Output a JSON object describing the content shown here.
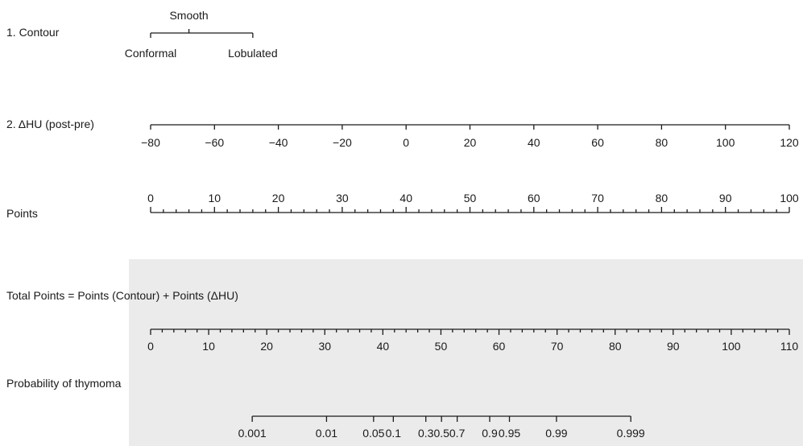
{
  "chart_data": {
    "type": "nomogram",
    "scales": [
      {
        "label": "1. Contour",
        "kind": "categorical",
        "ticks": [
          {
            "value": 0,
            "text": "Conformal",
            "side": "below"
          },
          {
            "value": 6,
            "text": "Smooth",
            "side": "above"
          },
          {
            "value": 16,
            "text": "Lobulated",
            "side": "below"
          }
        ],
        "axis_range_points": [
          0,
          16
        ]
      },
      {
        "label": "2. ΔHU (post-pre)",
        "kind": "linear",
        "domain": [
          -80,
          120
        ],
        "tick_values": [
          -80,
          -60,
          -40,
          -20,
          0,
          20,
          40,
          60,
          80,
          100,
          120
        ],
        "tick_labels": [
          "−80",
          "−60",
          "−40",
          "−20",
          "0",
          "20",
          "40",
          "60",
          "80",
          "100",
          "120"
        ],
        "label_side": "below"
      },
      {
        "label": "Points",
        "kind": "linear",
        "domain": [
          0,
          100
        ],
        "tick_values": [
          0,
          10,
          20,
          30,
          40,
          50,
          60,
          70,
          80,
          90,
          100
        ],
        "tick_labels": [
          "0",
          "10",
          "20",
          "30",
          "40",
          "50",
          "60",
          "70",
          "80",
          "90",
          "100"
        ],
        "minor_step": 2,
        "label_side": "above"
      },
      {
        "label": "Total Points = Points (Contour) + Points (ΔHU)",
        "kind": "linear",
        "domain": [
          0,
          110
        ],
        "tick_values": [
          0,
          10,
          20,
          30,
          40,
          50,
          60,
          70,
          80,
          90,
          100,
          110
        ],
        "tick_labels": [
          "0",
          "10",
          "20",
          "30",
          "40",
          "50",
          "60",
          "70",
          "80",
          "90",
          "100",
          "110"
        ],
        "minor_step": 2,
        "label_side": "below"
      },
      {
        "label": "Probability of thymoma",
        "kind": "probability",
        "ticks": [
          {
            "total_points": 17.5,
            "text": "0.001"
          },
          {
            "total_points": 30.3,
            "text": "0.01"
          },
          {
            "total_points": 38.4,
            "text": "0.05"
          },
          {
            "total_points": 41.8,
            "text": "0.1"
          },
          {
            "total_points": 47.4,
            "text": "0.3"
          },
          {
            "total_points": 50.1,
            "text": "0.5"
          },
          {
            "total_points": 52.8,
            "text": "0.7"
          },
          {
            "total_points": 58.4,
            "text": "0.9"
          },
          {
            "total_points": 61.8,
            "text": "0.95"
          },
          {
            "total_points": 69.9,
            "text": "0.99"
          },
          {
            "total_points": 82.7,
            "text": "0.999"
          }
        ],
        "label_side": "below"
      }
    ],
    "shaded_region": "Total Points and Probability rows",
    "colors": {
      "ink": "#1a1a1a",
      "shade": "#ebebeb",
      "background": "#ffffff"
    }
  }
}
